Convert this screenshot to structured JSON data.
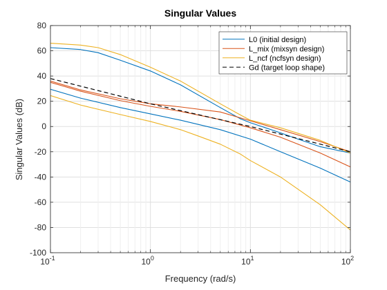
{
  "chart_data": {
    "type": "line",
    "title": "Singular Values",
    "xlabel": "Frequency (rad/s)",
    "ylabel": "Singular Values (dB)",
    "x_scale": "log",
    "xlim": [
      0.1,
      100
    ],
    "ylim": [
      -100,
      80
    ],
    "x_ticks": [
      {
        "value": 0.1,
        "base": "10",
        "exp": "-1"
      },
      {
        "value": 1,
        "base": "10",
        "exp": "0"
      },
      {
        "value": 10,
        "base": "10",
        "exp": "1"
      },
      {
        "value": 100,
        "base": "10",
        "exp": "2"
      }
    ],
    "y_ticks": [
      {
        "value": 80,
        "label": "80"
      },
      {
        "value": 60,
        "label": "60"
      },
      {
        "value": 40,
        "label": "40"
      },
      {
        "value": 20,
        "label": "20"
      },
      {
        "value": 0,
        "label": "0"
      },
      {
        "value": -20,
        "label": "-20"
      },
      {
        "value": -40,
        "label": "-40"
      },
      {
        "value": -60,
        "label": "-60"
      },
      {
        "value": -80,
        "label": "-80"
      },
      {
        "value": -100,
        "label": "-100"
      }
    ],
    "grid": true,
    "legend_position": "top-right",
    "series": [
      {
        "name": "L0 (initial design)",
        "color": "#0072BD",
        "dash": "solid",
        "show_in_legend": true,
        "x": [
          0.1,
          0.2,
          0.3,
          0.5,
          1,
          2,
          5,
          8,
          10,
          20,
          30,
          50,
          100
        ],
        "y": [
          62.5,
          61,
          58.5,
          52.5,
          44,
          33,
          15,
          6,
          3,
          -5,
          -10,
          -16,
          -21
        ]
      },
      {
        "name": "",
        "color": "#0072BD",
        "dash": "solid",
        "show_in_legend": false,
        "x": [
          0.1,
          0.2,
          0.5,
          1,
          2,
          5,
          10,
          20,
          50,
          100
        ],
        "y": [
          29.5,
          22.5,
          15,
          10,
          5,
          -2.5,
          -10,
          -20,
          -33,
          -44
        ]
      },
      {
        "name": "L_mix  (mixsyn  design)",
        "color": "#D95319",
        "dash": "solid",
        "show_in_legend": true,
        "x": [
          0.1,
          0.2,
          0.5,
          1,
          2,
          5,
          10,
          20,
          50,
          100
        ],
        "y": [
          36,
          29,
          22,
          18,
          15.5,
          11.5,
          4.5,
          -2.5,
          -12,
          -20
        ]
      },
      {
        "name": "",
        "color": "#D95319",
        "dash": "solid",
        "show_in_legend": false,
        "x": [
          0.1,
          0.2,
          0.5,
          1,
          2,
          5,
          10,
          20,
          50,
          100
        ],
        "y": [
          35,
          28,
          20.5,
          16,
          12,
          5.5,
          -1,
          -8.5,
          -21,
          -32
        ]
      },
      {
        "name": "L_ncf  (ncfsyn  design)",
        "color": "#EDB120",
        "dash": "solid",
        "show_in_legend": true,
        "x": [
          0.1,
          0.2,
          0.3,
          0.5,
          1,
          2,
          5,
          8,
          10,
          20,
          50,
          100
        ],
        "y": [
          66,
          64.5,
          62.5,
          57,
          47,
          36,
          18,
          9,
          5,
          -1,
          -11,
          -21
        ]
      },
      {
        "name": "",
        "color": "#EDB120",
        "dash": "solid",
        "show_in_legend": false,
        "x": [
          0.1,
          0.2,
          0.5,
          1,
          2,
          3,
          5,
          8,
          10,
          20,
          50,
          100
        ],
        "y": [
          24.5,
          17,
          9.5,
          4,
          -2.5,
          -7.5,
          -14,
          -22,
          -27,
          -40,
          -62,
          -82
        ]
      },
      {
        "name": "Gd (target loop shape)",
        "color": "#000000",
        "dash": "dashed",
        "show_in_legend": true,
        "x": [
          0.1,
          1,
          10,
          100
        ],
        "y": [
          38,
          18,
          0,
          -20
        ]
      }
    ]
  }
}
